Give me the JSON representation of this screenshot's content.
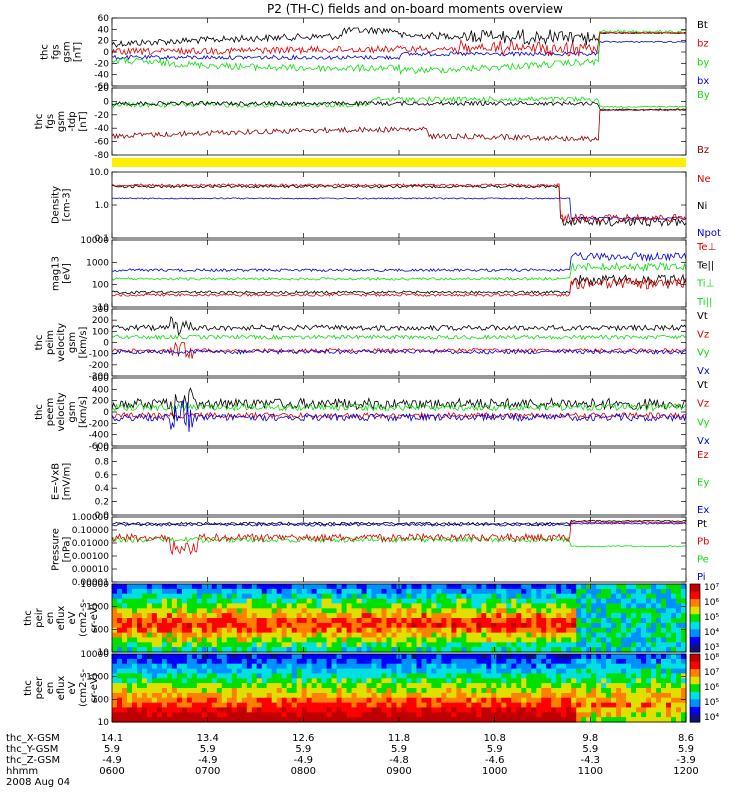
{
  "title": "P2 (TH-C) fields and on-board moments overview",
  "colors": {
    "black": "#000000",
    "red": "#e00000",
    "green": "#10e010",
    "blue": "#0000e0",
    "darkred": "#900000",
    "yellow": "#ffee00"
  },
  "chart_data": [
    {
      "type": "line",
      "ylabel": [
        "thc",
        "fgs",
        "gsm",
        "[nT]"
      ],
      "ylim": [
        -60,
        60
      ],
      "yticks": [
        "60",
        "40",
        "20",
        "0",
        "-20",
        "-40",
        "-60"
      ],
      "legend": [
        {
          "name": "Bt",
          "color": "#000000"
        },
        {
          "name": "bz",
          "color": "#e00000"
        },
        {
          "name": "by",
          "color": "#10e010"
        },
        {
          "name": "bx",
          "color": "#0000e0"
        }
      ]
    },
    {
      "type": "line",
      "ylabel": [
        "thc",
        "fgs",
        "gsm",
        "-tdp",
        "[nT]"
      ],
      "ylim": [
        -100,
        20
      ],
      "yticks": [
        "20",
        "0",
        "-20",
        "-40",
        "-60",
        "-80"
      ],
      "legend": [
        {
          "name": "By",
          "color": "#10e010"
        },
        {
          "name": "Bz",
          "color": "#900000"
        }
      ]
    },
    {
      "type": "line",
      "ylabel": [
        "Density",
        "[cm-3]"
      ],
      "scale": "log",
      "ylim": [
        0.1,
        10
      ],
      "yticks": [
        "10.0",
        "1.0",
        "0.1"
      ],
      "legend": [
        {
          "name": "Ne",
          "color": "#e00000"
        },
        {
          "name": "Ni",
          "color": "#000000"
        },
        {
          "name": "Npot",
          "color": "#0000e0"
        }
      ]
    },
    {
      "type": "line",
      "ylabel": [
        "mag13",
        "[eV]"
      ],
      "scale": "log",
      "ylim": [
        10,
        10000
      ],
      "yticks": [
        "10000",
        "1000",
        "100",
        "10"
      ],
      "legend": [
        {
          "name": "Te⊥",
          "color": "#e00000"
        },
        {
          "name": "Te||",
          "color": "#000000"
        },
        {
          "name": "Ti⊥",
          "color": "#10e010"
        },
        {
          "name": "Ti||",
          "color": "#10e010"
        }
      ]
    },
    {
      "type": "line",
      "ylabel": [
        "thc",
        "peim",
        "velocity",
        "gsm",
        "[km/s]"
      ],
      "ylim": [
        -300,
        300
      ],
      "yticks": [
        "300",
        "200",
        "100",
        "0",
        "-100",
        "-200",
        "-300"
      ],
      "legend": [
        {
          "name": "Vt",
          "color": "#000000"
        },
        {
          "name": "Vz",
          "color": "#e00000"
        },
        {
          "name": "Vy",
          "color": "#10e010"
        },
        {
          "name": "Vx",
          "color": "#0000e0"
        }
      ]
    },
    {
      "type": "line",
      "ylabel": [
        "thc",
        "peem",
        "velocity",
        "gsm",
        "[km/s]"
      ],
      "ylim": [
        -600,
        600
      ],
      "yticks": [
        "600",
        "400",
        "200",
        "0",
        "-200",
        "-400",
        "-600"
      ],
      "legend": [
        {
          "name": "Vt",
          "color": "#000000"
        },
        {
          "name": "Vz",
          "color": "#e00000"
        },
        {
          "name": "Vy",
          "color": "#10e010"
        },
        {
          "name": "Vx",
          "color": "#0000e0"
        }
      ]
    },
    {
      "type": "line",
      "ylabel": [
        "E=-VxB",
        "[mV/m]"
      ],
      "ylim": [
        0,
        1
      ],
      "yticks": [
        "1.0",
        "0.8",
        "0.6",
        "0.4",
        "0.2",
        "0.0"
      ],
      "legend": [
        {
          "name": "Ez",
          "color": "#e00000"
        },
        {
          "name": "Ey",
          "color": "#10e010"
        },
        {
          "name": "Ex",
          "color": "#0000e0"
        }
      ]
    },
    {
      "type": "line",
      "ylabel": [
        "Pressure",
        "[nPa]"
      ],
      "scale": "log",
      "ylim": [
        1e-05,
        1
      ],
      "yticks": [
        "1.00000",
        "0.10000",
        "0.01000",
        "0.00100",
        "0.00010",
        "0.00001"
      ],
      "legend": [
        {
          "name": "Pt",
          "color": "#000000"
        },
        {
          "name": "Pb",
          "color": "#e00000"
        },
        {
          "name": "Pe",
          "color": "#10e010"
        },
        {
          "name": "Pi",
          "color": "#0000e0"
        }
      ]
    },
    {
      "type": "heatmap",
      "ylabel": [
        "thc",
        "peir",
        "en",
        "eflux",
        "eV",
        "(cm2-s-",
        "sr-eV)"
      ],
      "scale": "log",
      "ylim": [
        10,
        20000
      ],
      "yticks": [
        "10000",
        "1000",
        "100",
        "10"
      ],
      "colorbar": [
        "10⁷",
        "10⁶",
        "10⁵",
        "10⁴",
        "10³"
      ]
    },
    {
      "type": "heatmap",
      "ylabel": [
        "thc",
        "peer",
        "en",
        "eflux",
        "eV",
        "(cm2-s-",
        "sr-eV)"
      ],
      "scale": "log",
      "ylim": [
        10,
        20000
      ],
      "yticks": [
        "10000",
        "1000",
        "100",
        "10"
      ],
      "colorbar": [
        "10⁸",
        "10⁷",
        "10⁶",
        "10⁵",
        "10⁴"
      ]
    }
  ],
  "xaxis": {
    "rows": [
      {
        "label": "thc_X-GSM",
        "values": [
          "14.1",
          "13.4",
          "12.6",
          "11.8",
          "10.8",
          "9.8",
          "8.6"
        ]
      },
      {
        "label": "thc_Y-GSM",
        "values": [
          "5.9",
          "5.9",
          "5.9",
          "5.9",
          "5.9",
          "5.9",
          "5.9"
        ]
      },
      {
        "label": "thc_Z-GSM",
        "values": [
          "-4.9",
          "-4.9",
          "-4.9",
          "-4.8",
          "-4.6",
          "-4.3",
          "-3.9"
        ]
      },
      {
        "label": "hhmm",
        "values": [
          "0600",
          "0700",
          "0800",
          "0900",
          "1000",
          "1100",
          "1200"
        ]
      }
    ],
    "date": "2008 Aug 04"
  }
}
